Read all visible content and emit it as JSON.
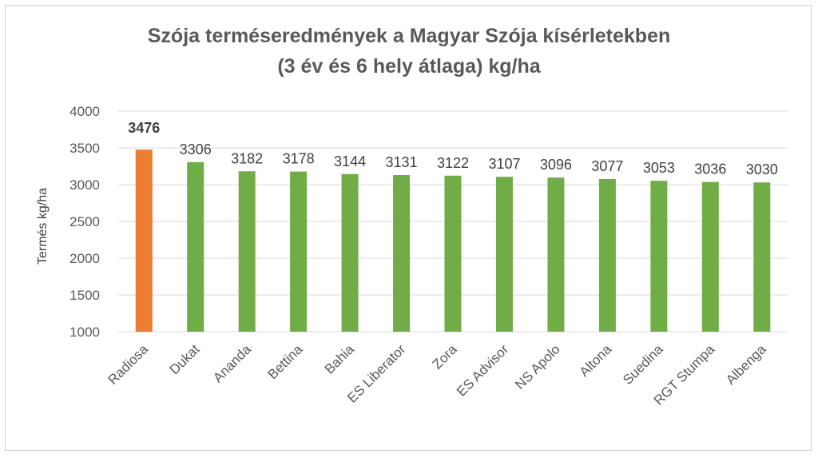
{
  "chart_data": {
    "type": "bar",
    "title_line1": "Szója terméseredmények a Magyar Szója kísérletekben",
    "title_line2": "(3 év és 6 hely átlaga) kg/ha",
    "ylabel": "Termés kg/ha",
    "xlabel": "",
    "ylim": [
      1000,
      4000
    ],
    "yticks": [
      1000,
      1500,
      2000,
      2500,
      3000,
      3500,
      4000
    ],
    "grid": true,
    "legend": "none",
    "categories": [
      "Radiosa",
      "Dukat",
      "Ananda",
      "Bettina",
      "Bahia",
      "ES Liberator",
      "Zora",
      "ES Advisor",
      "NS Apolo",
      "Altona",
      "Suedina",
      "RGT Stumpa",
      "Albenga"
    ],
    "values": [
      3476,
      3306,
      3182,
      3178,
      3144,
      3131,
      3122,
      3107,
      3096,
      3077,
      3053,
      3036,
      3030
    ],
    "highlight_index": 0,
    "colors": {
      "highlight": "#ED7D31",
      "bar": "#70AD47",
      "grid": "#d9d9d9",
      "text": "#404040",
      "axis_text": "#595959"
    }
  }
}
